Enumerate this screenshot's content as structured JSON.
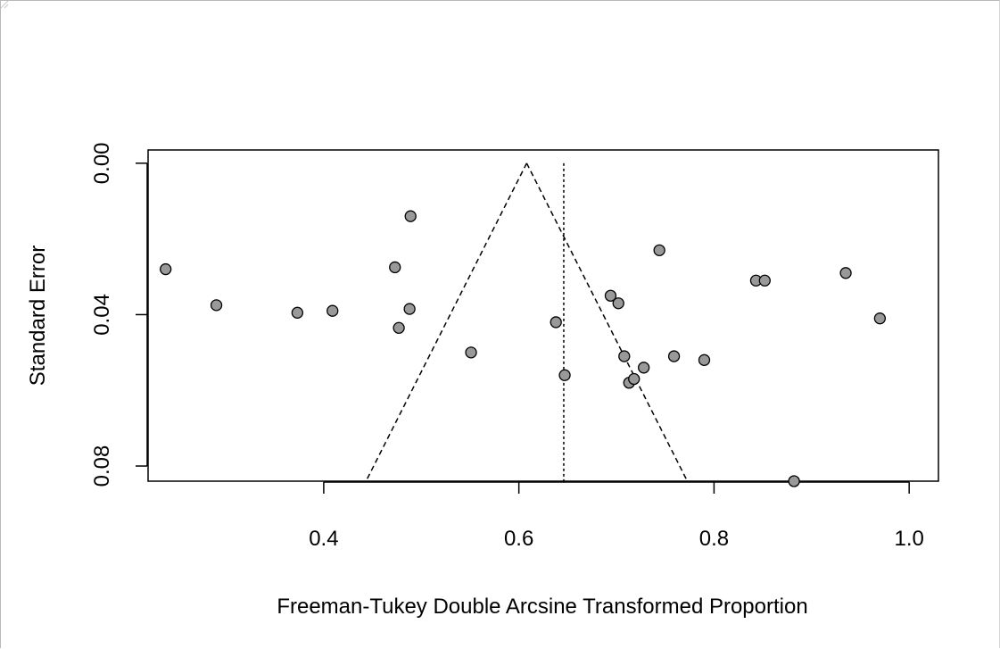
{
  "chart_data": {
    "type": "scatter",
    "title": "",
    "xlabel": "Freeman-Tukey Double Arcsine Transformed Proportion",
    "ylabel": "Standard Error",
    "xlim": [
      0.22,
      1.03
    ],
    "ylim": [
      0.084,
      -0.0035
    ],
    "y_reversed": true,
    "x_ticks": [
      "0.4",
      "0.6",
      "0.8",
      "1.0"
    ],
    "x_tick_values": [
      0.4,
      0.6,
      0.8,
      1.0
    ],
    "y_ticks": [
      "0.00",
      "0.04",
      "0.08"
    ],
    "y_tick_values": [
      0.0,
      0.04,
      0.08
    ],
    "pooled_estimate": 0.608,
    "reference_line": 0.646,
    "funnel_bottom_se": 0.084,
    "points": [
      {
        "x": 0.238,
        "y": 0.028
      },
      {
        "x": 0.29,
        "y": 0.0375
      },
      {
        "x": 0.373,
        "y": 0.0395
      },
      {
        "x": 0.409,
        "y": 0.039
      },
      {
        "x": 0.473,
        "y": 0.0275
      },
      {
        "x": 0.477,
        "y": 0.0435
      },
      {
        "x": 0.488,
        "y": 0.0385
      },
      {
        "x": 0.489,
        "y": 0.014
      },
      {
        "x": 0.551,
        "y": 0.05
      },
      {
        "x": 0.638,
        "y": 0.042
      },
      {
        "x": 0.647,
        "y": 0.056
      },
      {
        "x": 0.694,
        "y": 0.035
      },
      {
        "x": 0.702,
        "y": 0.037
      },
      {
        "x": 0.708,
        "y": 0.051
      },
      {
        "x": 0.713,
        "y": 0.058
      },
      {
        "x": 0.718,
        "y": 0.057
      },
      {
        "x": 0.728,
        "y": 0.054
      },
      {
        "x": 0.744,
        "y": 0.023
      },
      {
        "x": 0.759,
        "y": 0.051
      },
      {
        "x": 0.79,
        "y": 0.052
      },
      {
        "x": 0.843,
        "y": 0.031
      },
      {
        "x": 0.852,
        "y": 0.031
      },
      {
        "x": 0.935,
        "y": 0.029
      },
      {
        "x": 0.97,
        "y": 0.041
      },
      {
        "x": 0.882,
        "y": 0.084
      }
    ],
    "grid": false,
    "point_fill": "#999999",
    "point_stroke": "#000000"
  }
}
